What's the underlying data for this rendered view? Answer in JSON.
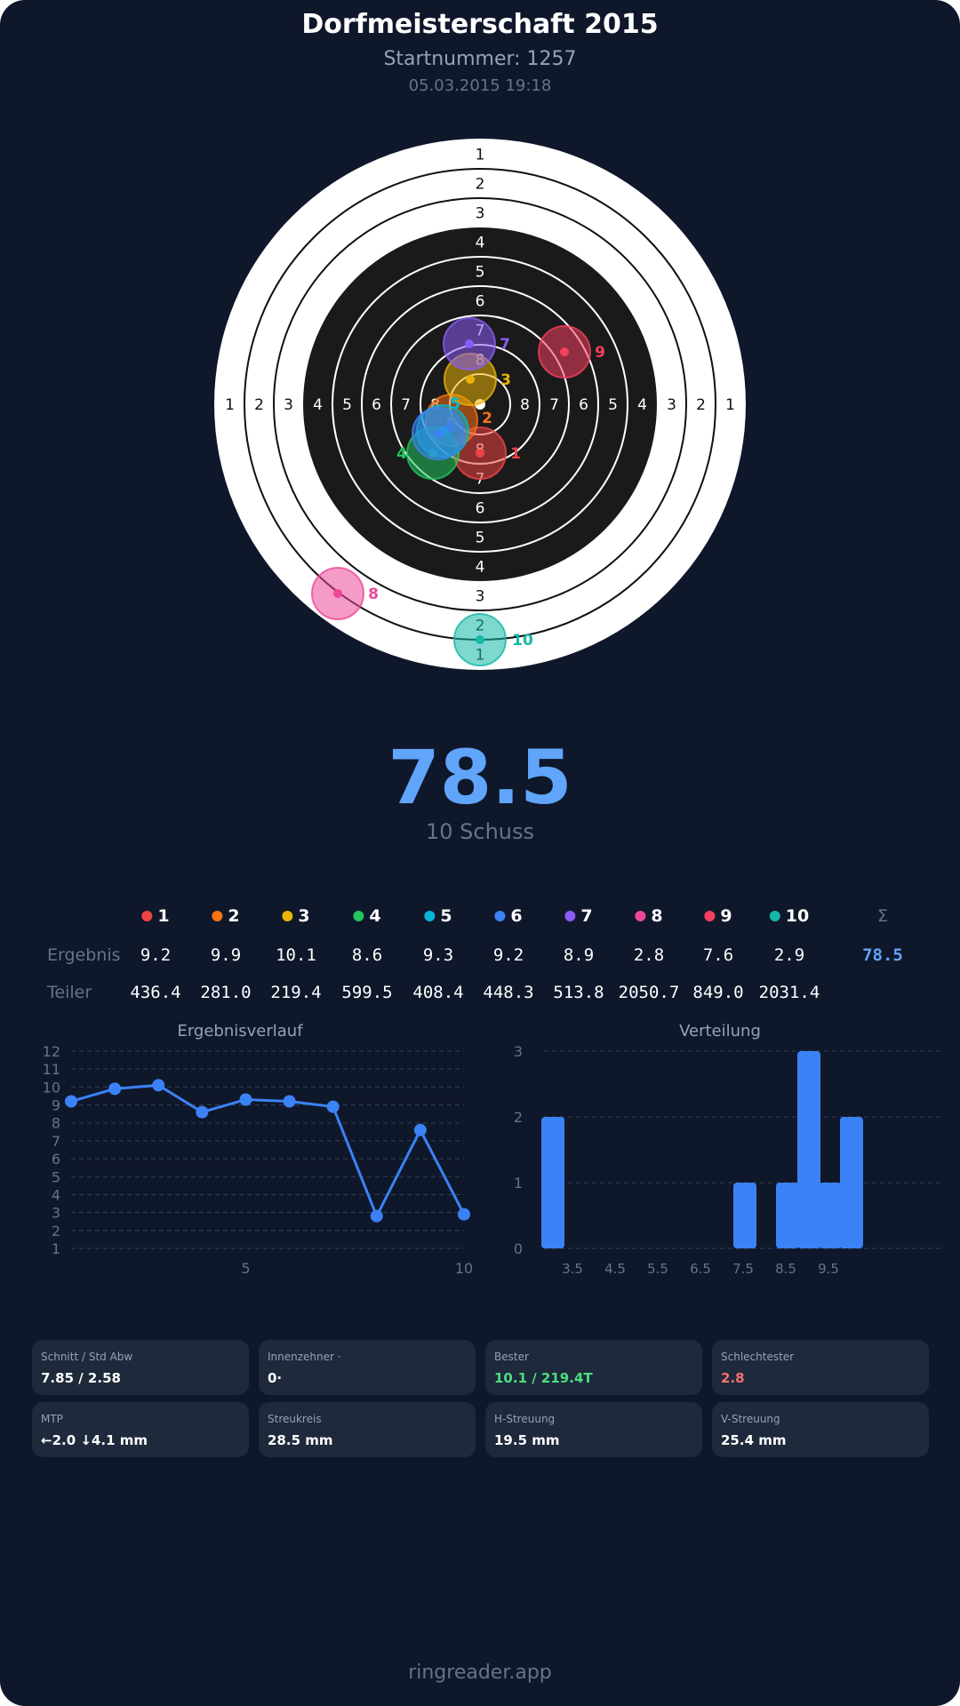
{
  "header": {
    "title": "Dorfmeisterschaft 2015",
    "start_number": "Startnummer: 1257",
    "datetime": "05.03.2015 19:18"
  },
  "target": {
    "ring_labels": [
      "1",
      "2",
      "3",
      "4",
      "5",
      "6",
      "7",
      "8"
    ],
    "shots": [
      {
        "n": "1",
        "color": "#ef4444"
      },
      {
        "n": "2",
        "color": "#f97316"
      },
      {
        "n": "3",
        "color": "#eab308"
      },
      {
        "n": "4",
        "color": "#22c55e"
      },
      {
        "n": "5",
        "color": "#06b6d4"
      },
      {
        "n": "6",
        "color": "#3b82f6"
      },
      {
        "n": "7",
        "color": "#8b5cf6"
      },
      {
        "n": "8",
        "color": "#ec4899"
      },
      {
        "n": "9",
        "color": "#f43f5e"
      },
      {
        "n": "10",
        "color": "#14b8a6"
      }
    ]
  },
  "summary": {
    "total": "78.5",
    "shot_count": "10 Schuss"
  },
  "table": {
    "row_labels": {
      "result": "Ergebnis",
      "divisor": "Teiler"
    },
    "sum_symbol": "Σ",
    "sum_value": "78.5",
    "shots": [
      "1",
      "2",
      "3",
      "4",
      "5",
      "6",
      "7",
      "8",
      "9",
      "10"
    ],
    "results": [
      "9.2",
      "9.9",
      "10.1",
      "8.6",
      "9.3",
      "9.2",
      "8.9",
      "2.8",
      "7.6",
      "2.9"
    ],
    "divisors": [
      "436.4",
      "281.0",
      "219.4",
      "599.5",
      "408.4",
      "448.3",
      "513.8",
      "2050.7",
      "849.0",
      "2031.4"
    ]
  },
  "chart_data": [
    {
      "type": "line",
      "title": "Ergebnisverlauf",
      "x": [
        1,
        2,
        3,
        4,
        5,
        6,
        7,
        8,
        9,
        10
      ],
      "values": [
        9.2,
        9.9,
        10.1,
        8.6,
        9.3,
        9.2,
        8.9,
        2.8,
        7.6,
        2.9
      ],
      "xlim": [
        1,
        10
      ],
      "ylim": [
        1,
        12
      ],
      "x_ticks": [
        "5",
        "10"
      ],
      "y_ticks": [
        "1",
        "2",
        "3",
        "4",
        "5",
        "6",
        "7",
        "8",
        "9",
        "10",
        "11",
        "12"
      ],
      "grid": true,
      "color": "#3b82f6"
    },
    {
      "type": "bar",
      "title": "Verteilung",
      "categories": [
        3.0,
        3.5,
        4.0,
        4.5,
        5.0,
        5.5,
        6.0,
        6.5,
        7.0,
        7.5,
        8.0,
        8.5,
        9.0,
        9.5,
        10.0
      ],
      "values": [
        2,
        0,
        0,
        0,
        0,
        0,
        0,
        0,
        0,
        1,
        0,
        1,
        3,
        1,
        2
      ],
      "ylim": [
        0,
        3
      ],
      "x_ticks": [
        "3.5",
        "4.5",
        "5.5",
        "6.5",
        "7.5",
        "8.5",
        "9.5"
      ],
      "y_ticks": [
        "0",
        "1",
        "2",
        "3"
      ],
      "grid": true,
      "color": "#3b82f6"
    }
  ],
  "stats": [
    {
      "label": "Schnitt / Std Abw",
      "value": "7.85 / 2.58",
      "color": "#ffffff"
    },
    {
      "label": "Innenzehner ·",
      "value": "0·",
      "color": "#ffffff"
    },
    {
      "label": "Bester",
      "value": "10.1 / 219.4T",
      "color": "#4ade80"
    },
    {
      "label": "Schlechtester",
      "value": "2.8",
      "color": "#f87171"
    },
    {
      "label": "MTP",
      "value": "←2.0 ↓4.1 mm",
      "color": "#ffffff"
    },
    {
      "label": "Streukreis",
      "value": "28.5 mm",
      "color": "#ffffff"
    },
    {
      "label": "H-Streuung",
      "value": "19.5 mm",
      "color": "#ffffff"
    },
    {
      "label": "V-Streuung",
      "value": "25.4 mm",
      "color": "#ffffff"
    }
  ],
  "footer": "ringreader.app"
}
